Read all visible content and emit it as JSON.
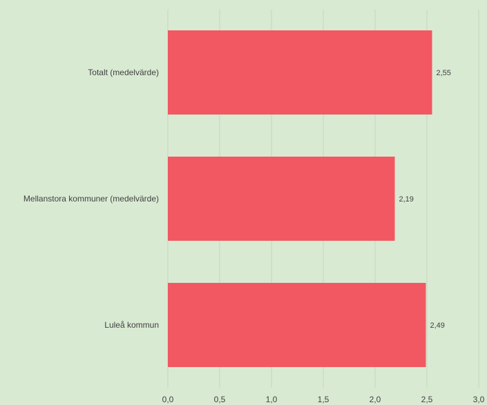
{
  "chart_data": {
    "type": "bar",
    "orientation": "horizontal",
    "categories": [
      "Totalt (medelvärde)",
      "Mellanstora kommuner (medelvärde)",
      "Luleå kommun"
    ],
    "values": [
      2.55,
      2.19,
      2.49
    ],
    "value_labels": [
      "2,55",
      "2,19",
      "2,49"
    ],
    "title": "",
    "xlabel": "",
    "ylabel": "",
    "xlim": [
      0,
      3.0
    ],
    "x_ticks": [
      0,
      0.5,
      1.0,
      1.5,
      2.0,
      2.5,
      3.0
    ],
    "x_tick_labels": [
      "0,0",
      "0,5",
      "1,0",
      "1,5",
      "2,0",
      "2,5",
      "3,0"
    ],
    "grid": "vertical",
    "legend": "none",
    "colors": {
      "bar": "#f25861",
      "gridline": "#c6d4c0",
      "background": "#d9ead3",
      "text": "#404040"
    }
  }
}
